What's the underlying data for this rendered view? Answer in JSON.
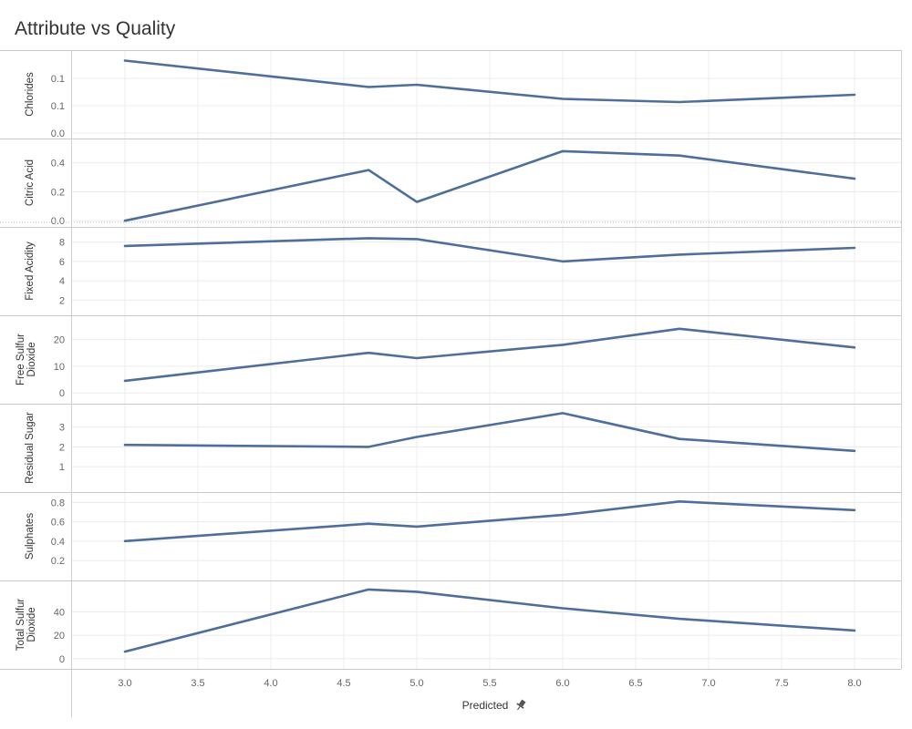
{
  "title": "Attribute vs Quality",
  "colors": {
    "line": "#4e6f9b",
    "grid": "#ececec",
    "divider": "#c8c8c8",
    "axis": "#cfcfcf"
  },
  "pin_icon": "pin-icon",
  "chart_data": {
    "type": "line",
    "title": "Attribute vs Quality",
    "xlabel": "Predicted",
    "x": [
      3.0,
      4.67,
      5.0,
      6.0,
      6.8,
      8.0
    ],
    "xlim": [
      2.6,
      8.3
    ],
    "xticks": [
      "3.0",
      "3.5",
      "4.0",
      "4.5",
      "5.0",
      "5.5",
      "6.0",
      "6.5",
      "7.0",
      "7.5",
      "8.0"
    ],
    "grid": true,
    "rows": [
      {
        "label": [
          "Chlorides"
        ],
        "values": [
          0.159,
          0.101,
          0.106,
          0.075,
          0.068,
          0.084
        ],
        "ylim": [
          0.0,
          0.17
        ],
        "yticks": [
          0.0,
          0.06,
          0.12
        ],
        "ytick_labels": [
          "0.0",
          "0.1",
          "0.1"
        ]
      },
      {
        "label": [
          "Citric Acid"
        ],
        "values": [
          0.0,
          0.35,
          0.13,
          0.48,
          0.45,
          0.29
        ],
        "ylim": [
          -0.005,
          0.53
        ],
        "yticks": [
          0.0,
          0.2,
          0.4
        ],
        "ytick_labels": [
          "0.0",
          "0.2",
          "0.4"
        ]
      },
      {
        "label": [
          "Fixed Acidity"
        ],
        "values": [
          7.6,
          8.4,
          8.3,
          6.0,
          6.7,
          7.4
        ],
        "ylim": [
          1.0,
          9.0
        ],
        "yticks": [
          2,
          4,
          6,
          8
        ],
        "ytick_labels": [
          "2",
          "4",
          "6",
          "8"
        ]
      },
      {
        "label": [
          "Free Sulfur",
          "Dioxide"
        ],
        "values": [
          4.5,
          15.0,
          13.0,
          18.0,
          24.0,
          17.0
        ],
        "ylim": [
          -2.0,
          27.0
        ],
        "yticks": [
          0,
          10,
          20
        ],
        "ytick_labels": [
          "0",
          "10",
          "20"
        ]
      },
      {
        "label": [
          "Residual Sugar"
        ],
        "values": [
          2.1,
          2.0,
          2.5,
          3.7,
          2.4,
          1.8
        ],
        "ylim": [
          0.0,
          3.9
        ],
        "yticks": [
          1,
          2,
          3
        ],
        "ytick_labels": [
          "1",
          "2",
          "3"
        ]
      },
      {
        "label": [
          "Sulphates"
        ],
        "values": [
          0.4,
          0.58,
          0.55,
          0.67,
          0.81,
          0.72
        ],
        "ylim": [
          0.05,
          0.85
        ],
        "yticks": [
          0.2,
          0.4,
          0.6,
          0.8
        ],
        "ytick_labels": [
          "0.2",
          "0.4",
          "0.6",
          "0.8"
        ]
      },
      {
        "label": [
          "Total Sulfur",
          "Dioxide"
        ],
        "values": [
          6.0,
          59.0,
          57.0,
          43.0,
          34.0,
          24.0
        ],
        "ylim": [
          -4.0,
          62.0
        ],
        "yticks": [
          0,
          20,
          40
        ],
        "ytick_labels": [
          "0",
          "20",
          "40"
        ]
      }
    ]
  }
}
